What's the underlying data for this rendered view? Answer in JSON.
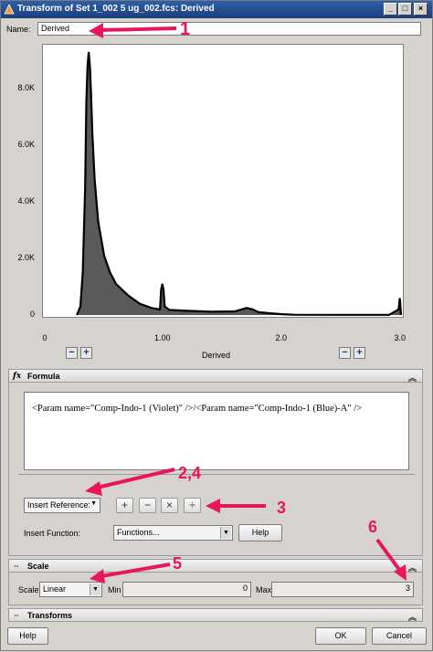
{
  "window": {
    "title": "Transform of Set 1_002 5 ug_002.fcs: Derived",
    "controls": [
      "_",
      "□",
      "×"
    ]
  },
  "name": {
    "label": "Name:",
    "value": "Derived"
  },
  "chart_data": {
    "type": "area",
    "xlabel": "Derived",
    "ylabel": "",
    "xlim": [
      0,
      3.0
    ],
    "ylim": [
      0,
      9300
    ],
    "x_ticks": [
      "0",
      "1.00",
      "2.0",
      "3.0"
    ],
    "y_ticks": [
      "0",
      "2.0K",
      "4.0K",
      "6.0K",
      "8.0K"
    ],
    "series": [
      {
        "x": [
          0.27,
          0.3,
          0.32,
          0.34,
          0.35,
          0.36,
          0.37,
          0.38,
          0.39,
          0.4,
          0.42,
          0.45,
          0.5,
          0.55,
          0.6,
          0.7,
          0.8,
          0.9,
          0.97,
          0.98,
          0.99,
          1.0,
          1.01,
          1.05,
          1.2,
          1.4,
          1.6,
          1.7,
          1.75,
          1.8,
          1.9,
          2.0,
          2.1,
          2.5,
          2.9,
          2.98,
          2.99,
          3.0
        ],
        "y": [
          0,
          300,
          1500,
          4500,
          7500,
          8800,
          9300,
          8800,
          7800,
          6500,
          4800,
          3300,
          2100,
          1500,
          1100,
          700,
          400,
          250,
          200,
          900,
          1100,
          900,
          300,
          180,
          150,
          120,
          130,
          250,
          200,
          100,
          60,
          30,
          10,
          5,
          5,
          200,
          600,
          0
        ]
      }
    ]
  },
  "zoom": {
    "minus": "−",
    "plus": "+"
  },
  "formula": {
    "header": "Formula",
    "icon": "fx",
    "text": "<Param name=\"Comp-Indo-1 (Violet)\" />/<Param name=\"Comp-Indo-1 (Blue)-A\" />",
    "insert_reference": "Insert Reference:",
    "operators": [
      "+",
      "−",
      "×",
      "÷"
    ],
    "insert_function_label": "Insert Function:",
    "functions_value": "Functions...",
    "help": "Help"
  },
  "scale": {
    "header": "Scale",
    "label": "Scale",
    "value": "Linear",
    "min_label": "Min",
    "min_value": "0",
    "max_label": "Max",
    "max_value": "3"
  },
  "transforms": {
    "header": "Transforms"
  },
  "footer": {
    "help": "Help",
    "ok": "OK",
    "cancel": "Cancel"
  },
  "annotations": [
    "1",
    "2,4",
    "3",
    "5",
    "6"
  ],
  "colors": {
    "annotation": "#e8175d",
    "title_bar": "#1c3f7a",
    "fill": "#5a5a5a"
  }
}
